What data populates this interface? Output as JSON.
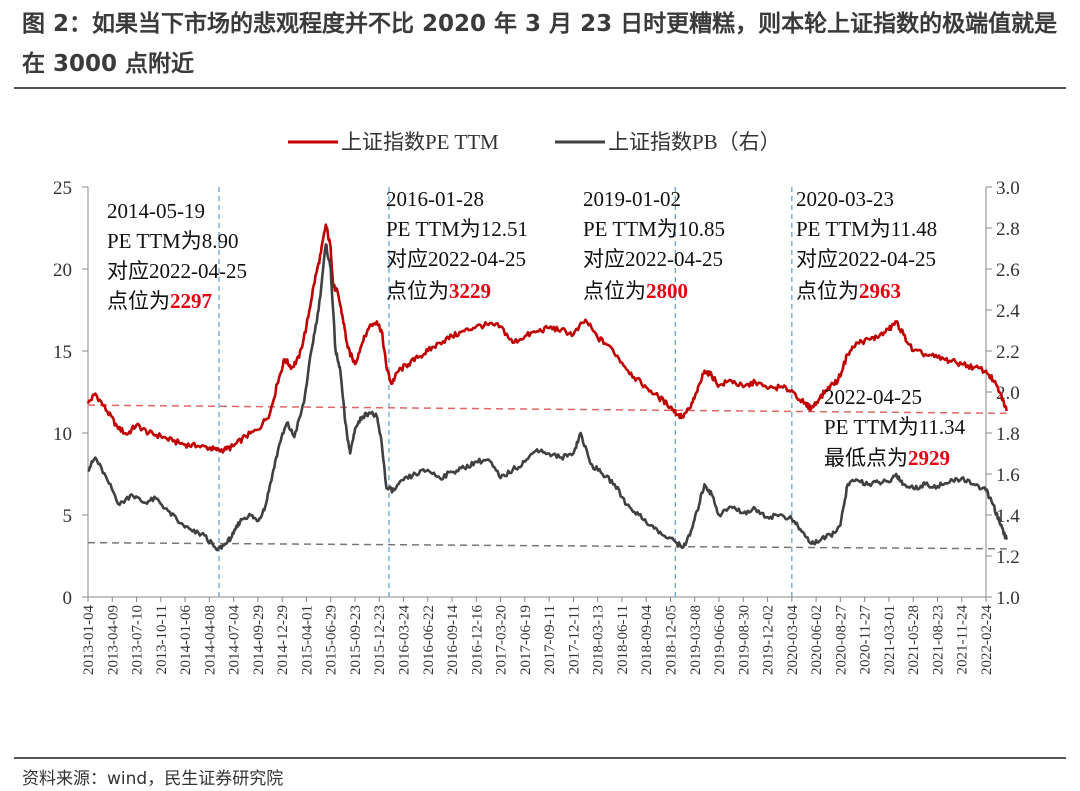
{
  "header": {
    "title": "图 2：如果当下市场的悲观程度并不比 2020 年 3 月 23 日时更糟糕，则本轮上证指数的极端值就是在 3000 点附近"
  },
  "footer": {
    "source": "资料来源：wind，民生证券研究院"
  },
  "colors": {
    "pe": "#c00000",
    "pb": "#404040",
    "vline": "#5b9bd5",
    "highlight": "#e60012"
  },
  "chart_data": {
    "type": "line",
    "legend_position": "top-center",
    "grid": false,
    "y_left": {
      "min": 0,
      "max": 25,
      "ticks": [
        "0",
        "5",
        "10",
        "15",
        "20",
        "25"
      ]
    },
    "y_right": {
      "min": 1.0,
      "max": 3.0,
      "ticks": [
        "1.0",
        "1.2",
        "1.4",
        "1.6",
        "1.8",
        "2.0",
        "2.2",
        "2.4",
        "2.6",
        "2.8",
        "3.0"
      ]
    },
    "x_ticks": [
      "2013-01-04",
      "2013-04-09",
      "2013-07-10",
      "2013-10-11",
      "2014-01-06",
      "2014-04-08",
      "2014-07-04",
      "2014-09-29",
      "2014-12-29",
      "2015-04-01",
      "2015-06-29",
      "2015-09-23",
      "2015-12-23",
      "2016-03-24",
      "2016-06-22",
      "2016-09-14",
      "2016-12-16",
      "2017-03-20",
      "2017-06-19",
      "2017-09-11",
      "2017-12-11",
      "2018-03-13",
      "2018-06-11",
      "2018-09-04",
      "2018-12-05",
      "2019-03-08",
      "2019-06-06",
      "2019-08-30",
      "2019-12-02",
      "2020-03-04",
      "2020-06-02",
      "2020-08-27",
      "2020-11-27",
      "2021-03-01",
      "2021-05-28",
      "2021-08-23",
      "2021-11-24",
      "2022-02-24"
    ],
    "series": [
      {
        "name": "上证指数PE TTM",
        "axis": "left",
        "color": "#c00000",
        "points": [
          [
            0,
            11.8
          ],
          [
            0.3,
            12.4
          ],
          [
            0.8,
            11.3
          ],
          [
            1.2,
            10.4
          ],
          [
            1.6,
            9.9
          ],
          [
            2.0,
            10.5
          ],
          [
            2.5,
            10.0
          ],
          [
            3.0,
            9.8
          ],
          [
            3.5,
            9.5
          ],
          [
            4.0,
            9.3
          ],
          [
            4.5,
            9.2
          ],
          [
            5.0,
            9.1
          ],
          [
            5.3,
            8.95
          ],
          [
            5.7,
            9.0
          ],
          [
            6.0,
            9.2
          ],
          [
            6.5,
            9.8
          ],
          [
            7.0,
            10.2
          ],
          [
            7.5,
            11.2
          ],
          [
            7.8,
            13.0
          ],
          [
            8.1,
            14.5
          ],
          [
            8.4,
            14.0
          ],
          [
            8.7,
            14.6
          ],
          [
            9.0,
            16.5
          ],
          [
            9.3,
            19.0
          ],
          [
            9.6,
            21.0
          ],
          [
            9.8,
            22.7
          ],
          [
            10.0,
            21.3
          ],
          [
            10.1,
            19.0
          ],
          [
            10.3,
            18.5
          ],
          [
            10.5,
            17.0
          ],
          [
            10.7,
            15.2
          ],
          [
            11.0,
            14.2
          ],
          [
            11.3,
            15.5
          ],
          [
            11.6,
            16.5
          ],
          [
            11.9,
            16.8
          ],
          [
            12.1,
            16.2
          ],
          [
            12.3,
            14.0
          ],
          [
            12.5,
            13.0
          ],
          [
            12.8,
            13.8
          ],
          [
            13.2,
            14.2
          ],
          [
            13.6,
            14.6
          ],
          [
            14.0,
            15.0
          ],
          [
            14.5,
            15.5
          ],
          [
            15.0,
            15.9
          ],
          [
            15.5,
            16.2
          ],
          [
            16.0,
            16.5
          ],
          [
            16.5,
            16.6
          ],
          [
            17.0,
            16.5
          ],
          [
            17.5,
            15.5
          ],
          [
            18.0,
            15.9
          ],
          [
            18.5,
            16.2
          ],
          [
            19.0,
            16.4
          ],
          [
            19.5,
            16.3
          ],
          [
            20.0,
            16.0
          ],
          [
            20.5,
            16.9
          ],
          [
            21.0,
            15.8
          ],
          [
            21.5,
            15.3
          ],
          [
            22.0,
            14.3
          ],
          [
            22.5,
            13.4
          ],
          [
            23.0,
            12.8
          ],
          [
            23.5,
            12.2
          ],
          [
            24.0,
            11.6
          ],
          [
            24.3,
            11.1
          ],
          [
            24.5,
            11.0
          ],
          [
            24.8,
            11.5
          ],
          [
            25.1,
            12.5
          ],
          [
            25.4,
            13.8
          ],
          [
            25.7,
            13.5
          ],
          [
            26.0,
            12.9
          ],
          [
            26.5,
            13.2
          ],
          [
            27.0,
            12.8
          ],
          [
            27.5,
            13.1
          ],
          [
            28.0,
            12.7
          ],
          [
            28.5,
            12.8
          ],
          [
            29.0,
            12.6
          ],
          [
            29.5,
            11.8
          ],
          [
            29.8,
            11.5
          ],
          [
            30.1,
            12.0
          ],
          [
            30.5,
            12.8
          ],
          [
            30.9,
            13.2
          ],
          [
            31.3,
            14.8
          ],
          [
            31.7,
            15.5
          ],
          [
            32.2,
            15.7
          ],
          [
            32.6,
            15.9
          ],
          [
            33.0,
            16.3
          ],
          [
            33.3,
            16.8
          ],
          [
            33.6,
            16.0
          ],
          [
            34.0,
            15.0
          ],
          [
            34.5,
            14.8
          ],
          [
            35.0,
            14.6
          ],
          [
            35.5,
            14.4
          ],
          [
            36.0,
            14.2
          ],
          [
            36.5,
            14.0
          ],
          [
            37.0,
            13.8
          ],
          [
            37.3,
            13.2
          ],
          [
            37.6,
            12.4
          ],
          [
            37.85,
            11.34
          ]
        ]
      },
      {
        "name": "上证指数PB（右）",
        "axis": "right",
        "color": "#404040",
        "points": [
          [
            0,
            1.62
          ],
          [
            0.3,
            1.68
          ],
          [
            0.8,
            1.57
          ],
          [
            1.3,
            1.45
          ],
          [
            1.8,
            1.5
          ],
          [
            2.3,
            1.46
          ],
          [
            2.8,
            1.48
          ],
          [
            3.3,
            1.42
          ],
          [
            3.8,
            1.36
          ],
          [
            4.3,
            1.32
          ],
          [
            4.8,
            1.3
          ],
          [
            5.3,
            1.23
          ],
          [
            5.7,
            1.26
          ],
          [
            6.0,
            1.31
          ],
          [
            6.3,
            1.38
          ],
          [
            6.7,
            1.4
          ],
          [
            7.0,
            1.37
          ],
          [
            7.3,
            1.44
          ],
          [
            7.6,
            1.6
          ],
          [
            7.9,
            1.75
          ],
          [
            8.2,
            1.85
          ],
          [
            8.5,
            1.78
          ],
          [
            8.9,
            1.95
          ],
          [
            9.2,
            2.2
          ],
          [
            9.5,
            2.4
          ],
          [
            9.8,
            2.72
          ],
          [
            10.0,
            2.6
          ],
          [
            10.2,
            2.2
          ],
          [
            10.4,
            2.1
          ],
          [
            10.6,
            1.85
          ],
          [
            10.8,
            1.7
          ],
          [
            11.0,
            1.82
          ],
          [
            11.3,
            1.88
          ],
          [
            11.6,
            1.9
          ],
          [
            11.9,
            1.88
          ],
          [
            12.1,
            1.75
          ],
          [
            12.3,
            1.53
          ],
          [
            12.6,
            1.52
          ],
          [
            13.0,
            1.57
          ],
          [
            13.5,
            1.6
          ],
          [
            14.0,
            1.62
          ],
          [
            14.5,
            1.58
          ],
          [
            15.0,
            1.61
          ],
          [
            15.5,
            1.63
          ],
          [
            16.0,
            1.66
          ],
          [
            16.5,
            1.67
          ],
          [
            17.0,
            1.58
          ],
          [
            17.5,
            1.62
          ],
          [
            18.0,
            1.66
          ],
          [
            18.5,
            1.72
          ],
          [
            19.0,
            1.7
          ],
          [
            19.5,
            1.68
          ],
          [
            20.0,
            1.7
          ],
          [
            20.3,
            1.8
          ],
          [
            20.7,
            1.65
          ],
          [
            21.2,
            1.6
          ],
          [
            21.7,
            1.55
          ],
          [
            22.2,
            1.45
          ],
          [
            22.7,
            1.4
          ],
          [
            23.2,
            1.35
          ],
          [
            23.7,
            1.3
          ],
          [
            24.2,
            1.27
          ],
          [
            24.5,
            1.24
          ],
          [
            24.8,
            1.3
          ],
          [
            25.1,
            1.42
          ],
          [
            25.4,
            1.55
          ],
          [
            25.7,
            1.5
          ],
          [
            26.0,
            1.4
          ],
          [
            26.5,
            1.44
          ],
          [
            27.0,
            1.41
          ],
          [
            27.5,
            1.43
          ],
          [
            28.0,
            1.39
          ],
          [
            28.5,
            1.4
          ],
          [
            29.0,
            1.38
          ],
          [
            29.4,
            1.32
          ],
          [
            29.8,
            1.26
          ],
          [
            30.2,
            1.28
          ],
          [
            30.6,
            1.3
          ],
          [
            31.0,
            1.35
          ],
          [
            31.3,
            1.55
          ],
          [
            31.7,
            1.57
          ],
          [
            32.2,
            1.55
          ],
          [
            32.6,
            1.56
          ],
          [
            33.0,
            1.56
          ],
          [
            33.3,
            1.6
          ],
          [
            33.6,
            1.55
          ],
          [
            34.0,
            1.53
          ],
          [
            34.5,
            1.55
          ],
          [
            35.0,
            1.54
          ],
          [
            35.5,
            1.56
          ],
          [
            36.0,
            1.58
          ],
          [
            36.5,
            1.55
          ],
          [
            37.0,
            1.52
          ],
          [
            37.3,
            1.45
          ],
          [
            37.6,
            1.35
          ],
          [
            37.85,
            1.28
          ]
        ]
      }
    ],
    "vertical_markers": [
      {
        "x_index": 5.4,
        "date": "2014-05-19",
        "line1": "PE TTM为8.90",
        "line2": "对应2022-04-25",
        "line3": "点位为",
        "value": "2297"
      },
      {
        "x_index": 12.4,
        "date": "2016-01-28",
        "line1": "PE TTM为12.51",
        "line2": "对应2022-04-25",
        "line3": "点位为",
        "value": "3229"
      },
      {
        "x_index": 24.2,
        "date": "2019-01-02",
        "line1": "PE TTM为10.85",
        "line2": "对应2022-04-25",
        "line3": "点位为",
        "value": "2800"
      },
      {
        "x_index": 29.0,
        "date": "2020-03-23",
        "line1": "PE TTM为11.48",
        "line2": "对应2022-04-25",
        "line3": "点位为",
        "value": "2963"
      }
    ],
    "end_annotation": {
      "date": "2022-04-25",
      "line1": "PE TTM为11.34",
      "line2": "最低点为",
      "value": "2929"
    },
    "trend_lines": [
      {
        "axis": "left",
        "from": [
          0,
          11.7
        ],
        "to": [
          37.85,
          11.2
        ]
      },
      {
        "axis": "right",
        "from": [
          0,
          1.265
        ],
        "to": [
          37.85,
          1.235
        ]
      }
    ]
  }
}
